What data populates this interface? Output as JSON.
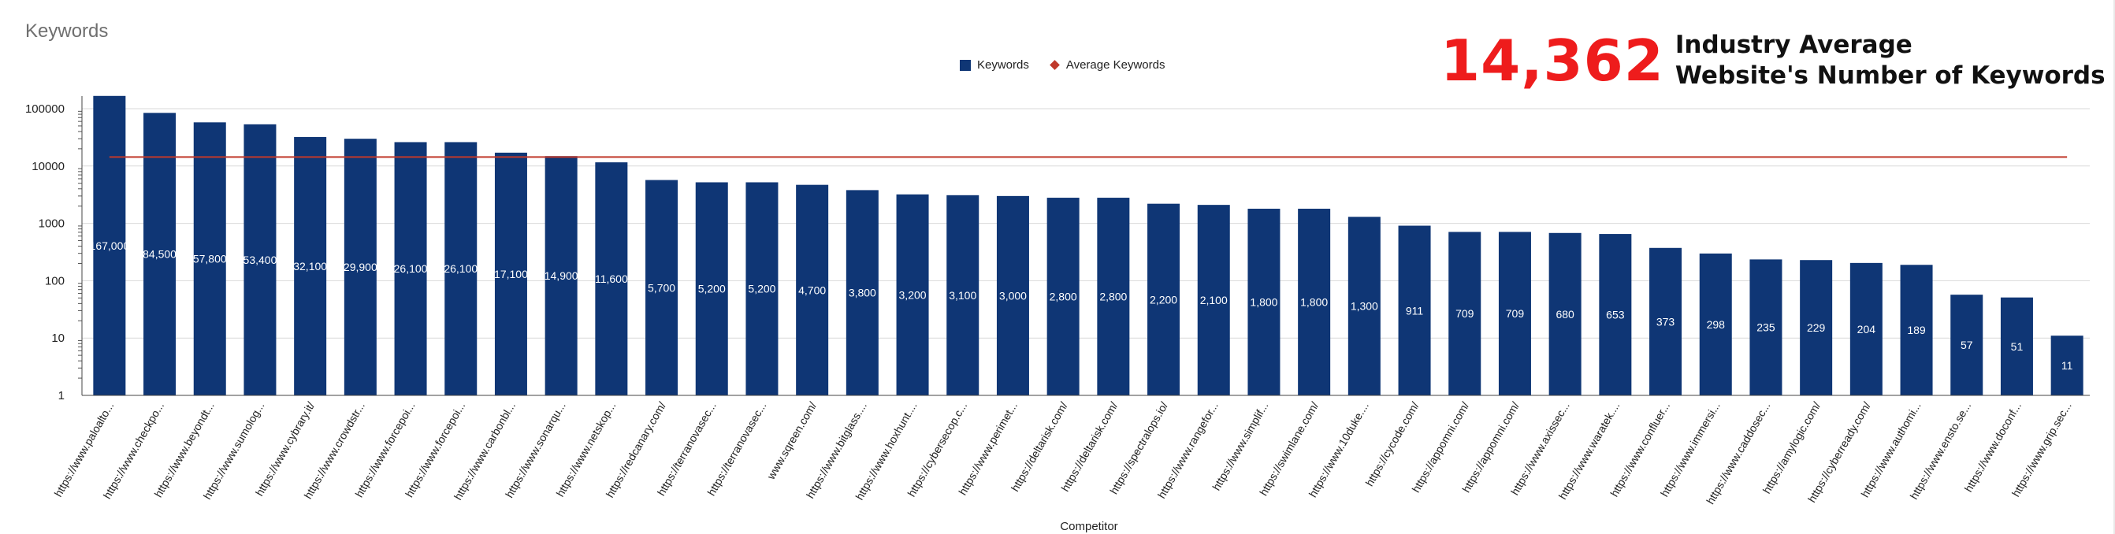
{
  "card": {
    "title": "Keywords"
  },
  "headline": {
    "value": "14,362",
    "line1": "Industry Average",
    "line2": "Website's Number of Keywords"
  },
  "legend": {
    "series1": "Keywords",
    "series2": "Average Keywords"
  },
  "colors": {
    "bar": "#0f3675",
    "average": "#c0392b",
    "headline": "#ee1c1c"
  },
  "chart_data": {
    "type": "bar",
    "title": "",
    "xlabel": "Competitor",
    "ylabel": "",
    "yscale": "log",
    "ylim": [
      1,
      100000
    ],
    "yticks": [
      "1",
      "10",
      "100",
      "1000",
      "10000",
      "100000"
    ],
    "grid": true,
    "legend_position": "top",
    "categories": [
      "https://www.paloalto...",
      "https://www.checkpo...",
      "https://www.beyondt...",
      "https://www.sumolog...",
      "https://www.cybrary.it/",
      "https://www.crowdstr...",
      "https://www.forcepoi...",
      "https://www.forcepoi...",
      "https://www.carbonbl...",
      "https://www.sonarqu...",
      "https://www.netskop...",
      "https://redcanary.com/",
      "https://terranovasec...",
      "https://terranovasec...",
      "www.sqreen.com/",
      "https://www.bitglass....",
      "https://www.hoxhunt....",
      "https://cybersecop.c...",
      "https://www.perimet...",
      "https://deltarisk.com/",
      "https://deltarisk.com/",
      "https://spectralops.io/",
      "https://www.rangefor...",
      "https://www.simplif...",
      "https://swimlane.com/",
      "https://www.10duke....",
      "https://cycode.com/",
      "https://appomni.com/",
      "https://appomni.com/",
      "https://www.axissec...",
      "https://www.waratek....",
      "https://www.confluer...",
      "https://www.immersi...",
      "https://www.caddosec...",
      "https://amylogic.com/",
      "https://cyberready.com/",
      "https://www.authomi...",
      "https://www.ensto.se...",
      "https://www.doconf...",
      "https://www.grip.sec..."
    ],
    "series": [
      {
        "name": "Keywords",
        "values": [
          167000,
          84500,
          57800,
          53400,
          32100,
          29900,
          26100,
          26100,
          17100,
          14900,
          11600,
          5700,
          5200,
          5200,
          4700,
          3800,
          3200,
          3100,
          3000,
          2800,
          2800,
          2200,
          2100,
          1800,
          1800,
          1300,
          911,
          709,
          709,
          680,
          653,
          373,
          298,
          235,
          229,
          204,
          189,
          57,
          51,
          11
        ],
        "labels": [
          "167,000",
          "84,500",
          "57,800",
          "53,400",
          "32,100",
          "29,900",
          "26,100",
          "26,100",
          "17,100",
          "14,900",
          "11,600",
          "5,700",
          "5,200",
          "5,200",
          "4,700",
          "3,800",
          "3,200",
          "3,100",
          "3,000",
          "2,800",
          "2,800",
          "2,200",
          "2,100",
          "1,800",
          "1,800",
          "1,300",
          "911",
          "709",
          "709",
          "680",
          "653",
          "373",
          "298",
          "235",
          "229",
          "204",
          "189",
          "57",
          "51",
          "11"
        ]
      },
      {
        "name": "Average Keywords",
        "type": "line",
        "value": 14362
      }
    ]
  }
}
